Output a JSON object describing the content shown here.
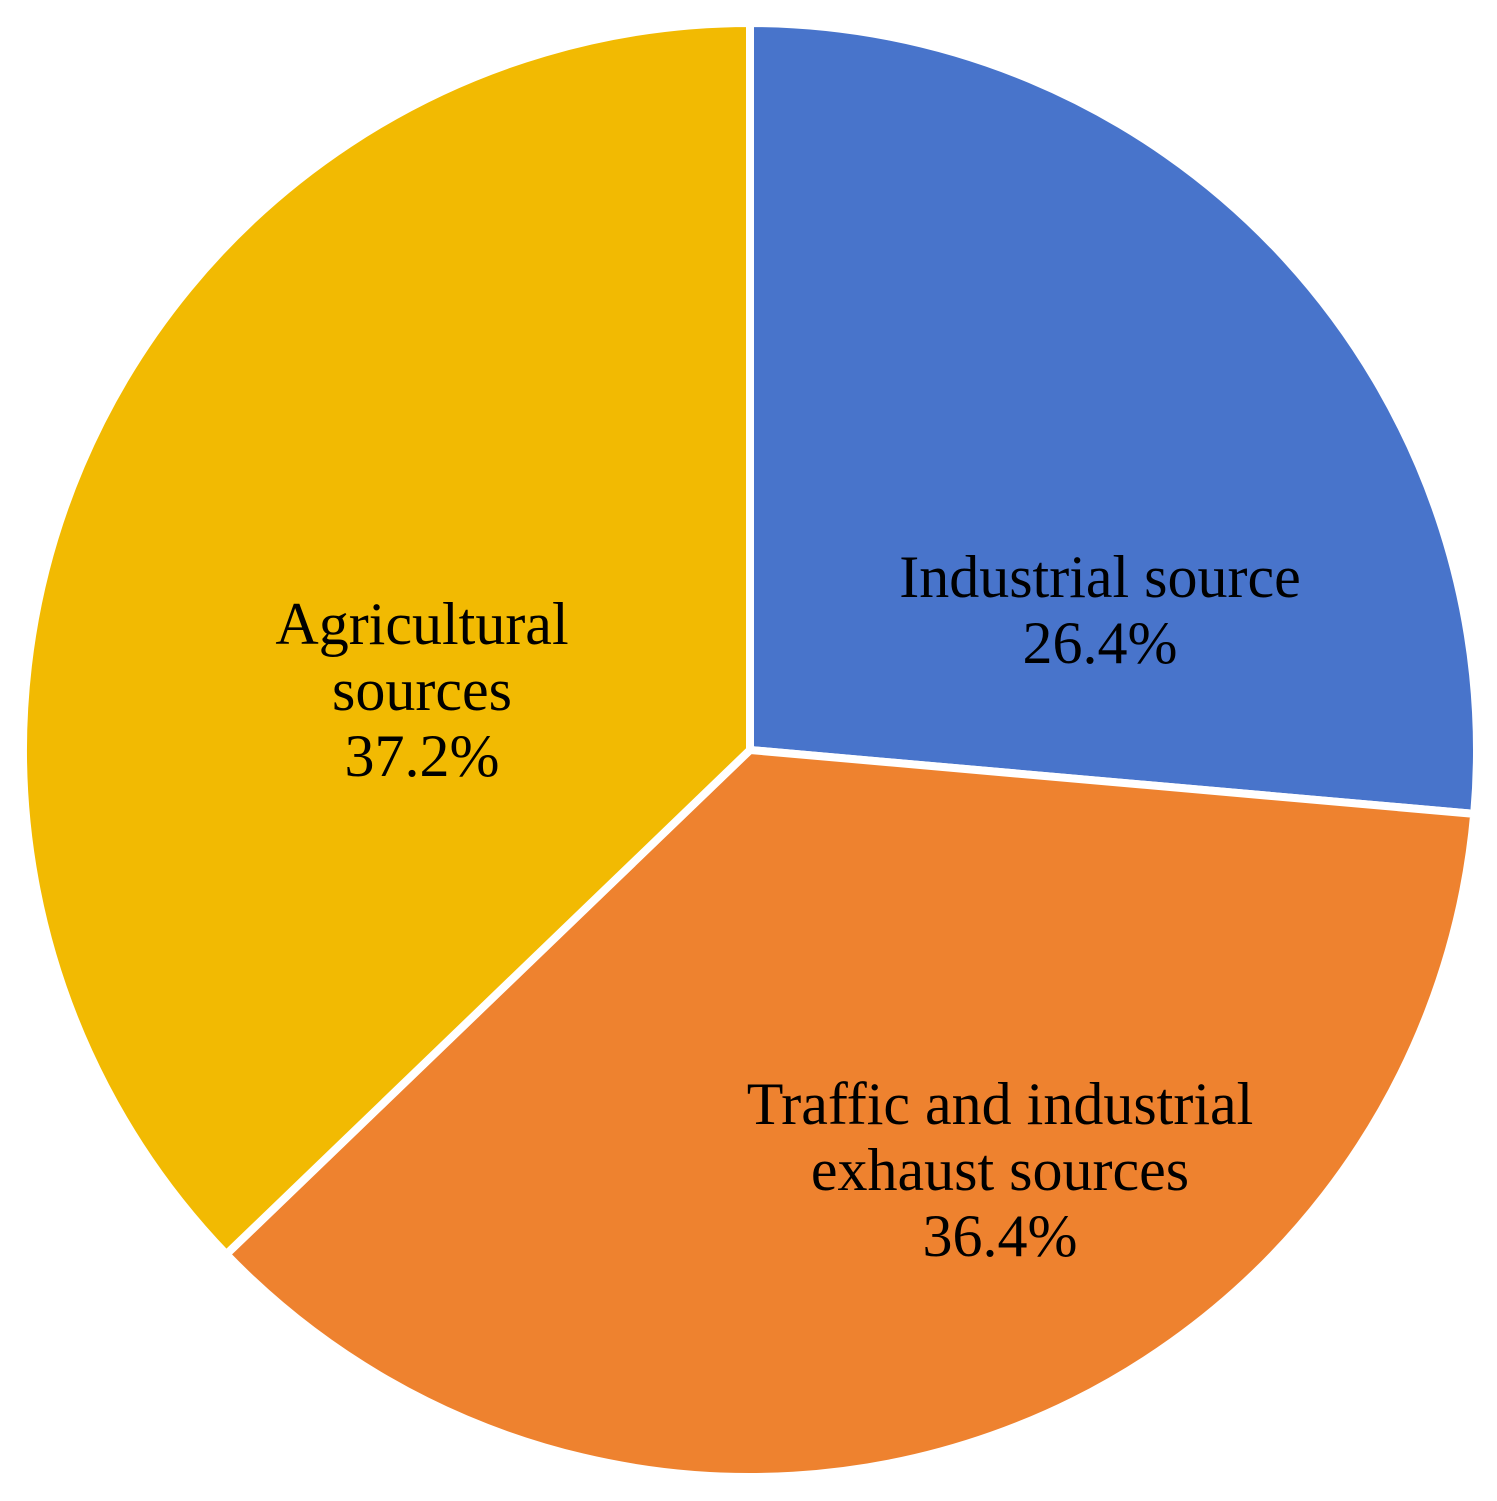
{
  "chart_data": {
    "type": "pie",
    "categories": [
      "Industrial source",
      "Traffic and industrial exhaust sources",
      "Agricultural sources"
    ],
    "values": [
      26.4,
      36.4,
      37.2
    ],
    "value_labels": [
      "26.4%",
      "36.4%",
      "37.2%"
    ],
    "colors": [
      "#4874cb",
      "#ee822f",
      "#f2ba02"
    ]
  }
}
